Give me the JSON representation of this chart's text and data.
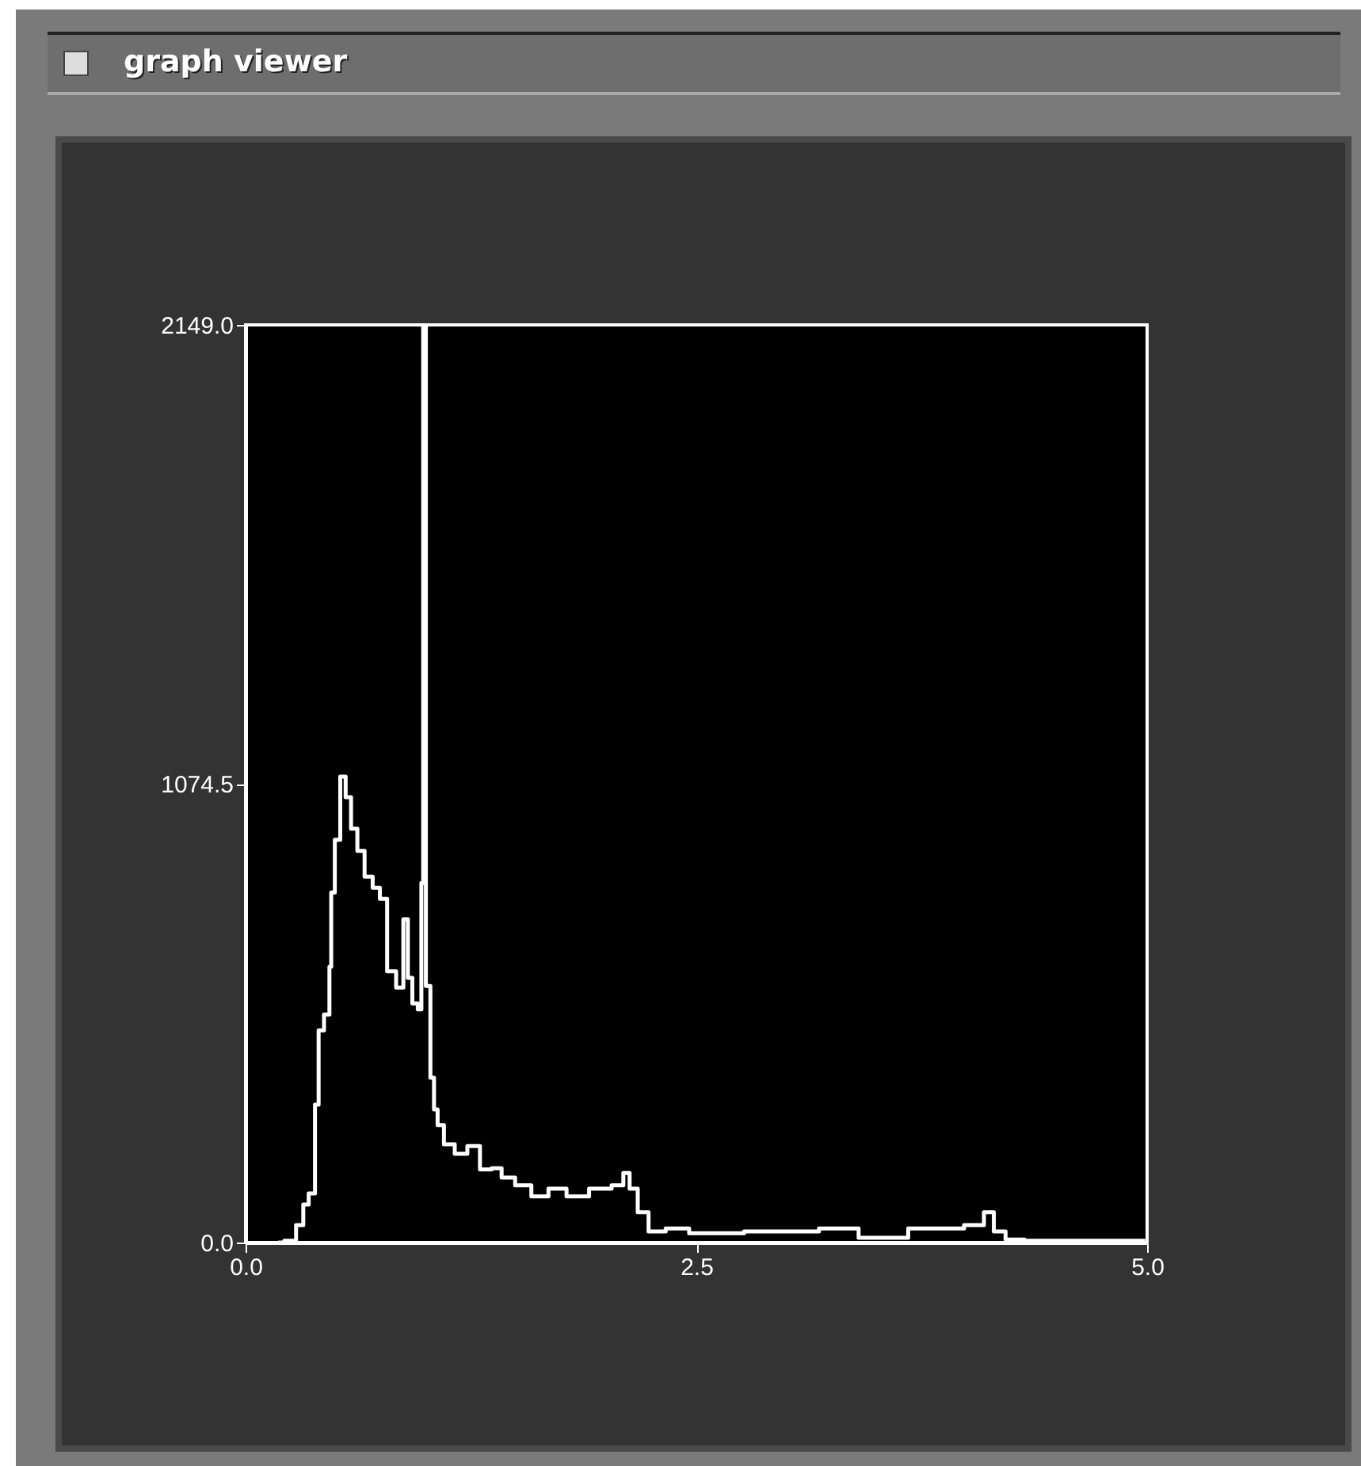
{
  "chart_data": {
    "type": "step",
    "title": "graph viewer",
    "x": [
      0.18,
      0.25,
      0.31,
      0.33,
      0.37,
      0.4,
      0.41,
      0.46,
      0.47,
      0.48,
      0.51,
      0.54,
      0.57,
      0.6,
      0.64,
      0.68,
      0.73,
      0.76,
      0.81,
      0.86,
      0.89,
      0.91,
      0.94,
      0.97,
      0.98,
      0.99,
      1.01,
      1.04,
      1.05,
      1.08,
      1.12,
      1.2,
      1.26,
      1.34,
      1.39,
      1.45,
      1.54,
      1.63,
      1.73,
      1.83,
      1.98,
      2.08,
      2.11,
      2.15,
      2.2,
      2.27,
      2.39,
      2.53,
      3.0,
      3.36,
      3.44,
      3.91,
      4.06,
      4.13,
      4.17,
      4.26,
      4.38,
      4.99
    ],
    "series": [
      {
        "color": "#ffffff",
        "values": [
          0,
          4,
          41,
          89,
          115,
          323,
          497,
          534,
          646,
          820,
          943,
          1091,
          1043,
          969,
          917,
          857,
          831,
          805,
          635,
          597,
          757,
          620,
          560,
          546,
          842,
          2149,
          601,
          386,
          312,
          275,
          230,
          208,
          226,
          171,
          174,
          152,
          134,
          108,
          126,
          108,
          126,
          134,
          163,
          126,
          71,
          26,
          33,
          22,
          26,
          33,
          11,
          33,
          41,
          71,
          26,
          7,
          4,
          4
        ]
      }
    ],
    "xlim": [
      0,
      5
    ],
    "xticks": [
      {
        "value": 0,
        "label": "0.0"
      },
      {
        "value": 2.5,
        "label": "2.5"
      },
      {
        "value": 5,
        "label": "5.0"
      }
    ],
    "ylim": [
      0,
      2149
    ],
    "yticks": [
      {
        "value": 0,
        "label": "0.0"
      },
      {
        "value": 1074.5,
        "label": "1074.5"
      },
      {
        "value": 2149,
        "label": "2149.0"
      }
    ],
    "grid": false
  }
}
